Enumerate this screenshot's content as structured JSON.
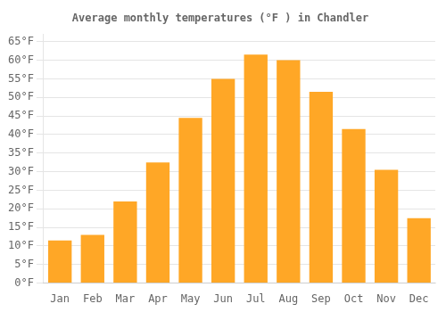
{
  "chart_data": {
    "type": "bar",
    "title": "Average monthly temperatures (°F ) in Chandler",
    "categories": [
      "Jan",
      "Feb",
      "Mar",
      "Apr",
      "May",
      "Jun",
      "Jul",
      "Aug",
      "Sep",
      "Oct",
      "Nov",
      "Dec"
    ],
    "values": [
      11.5,
      13.0,
      22.0,
      32.5,
      44.5,
      55.0,
      61.5,
      60.0,
      51.5,
      41.5,
      30.5,
      17.5
    ],
    "color": "#FFA726",
    "ylim": [
      0,
      67
    ],
    "yticks": [
      {
        "value": 0,
        "label": "0°F"
      },
      {
        "value": 5,
        "label": "5°F"
      },
      {
        "value": 10,
        "label": "10°F"
      },
      {
        "value": 15,
        "label": "15°F"
      },
      {
        "value": 20,
        "label": "20°F"
      },
      {
        "value": 25,
        "label": "25°F"
      },
      {
        "value": 30,
        "label": "30°F"
      },
      {
        "value": 35,
        "label": "35°F"
      },
      {
        "value": 40,
        "label": "40°F"
      },
      {
        "value": 45,
        "label": "45°F"
      },
      {
        "value": 50,
        "label": "50°F"
      },
      {
        "value": 55,
        "label": "55°F"
      },
      {
        "value": 60,
        "label": "60°F"
      },
      {
        "value": 65,
        "label": "65°F"
      }
    ],
    "grid": true
  }
}
